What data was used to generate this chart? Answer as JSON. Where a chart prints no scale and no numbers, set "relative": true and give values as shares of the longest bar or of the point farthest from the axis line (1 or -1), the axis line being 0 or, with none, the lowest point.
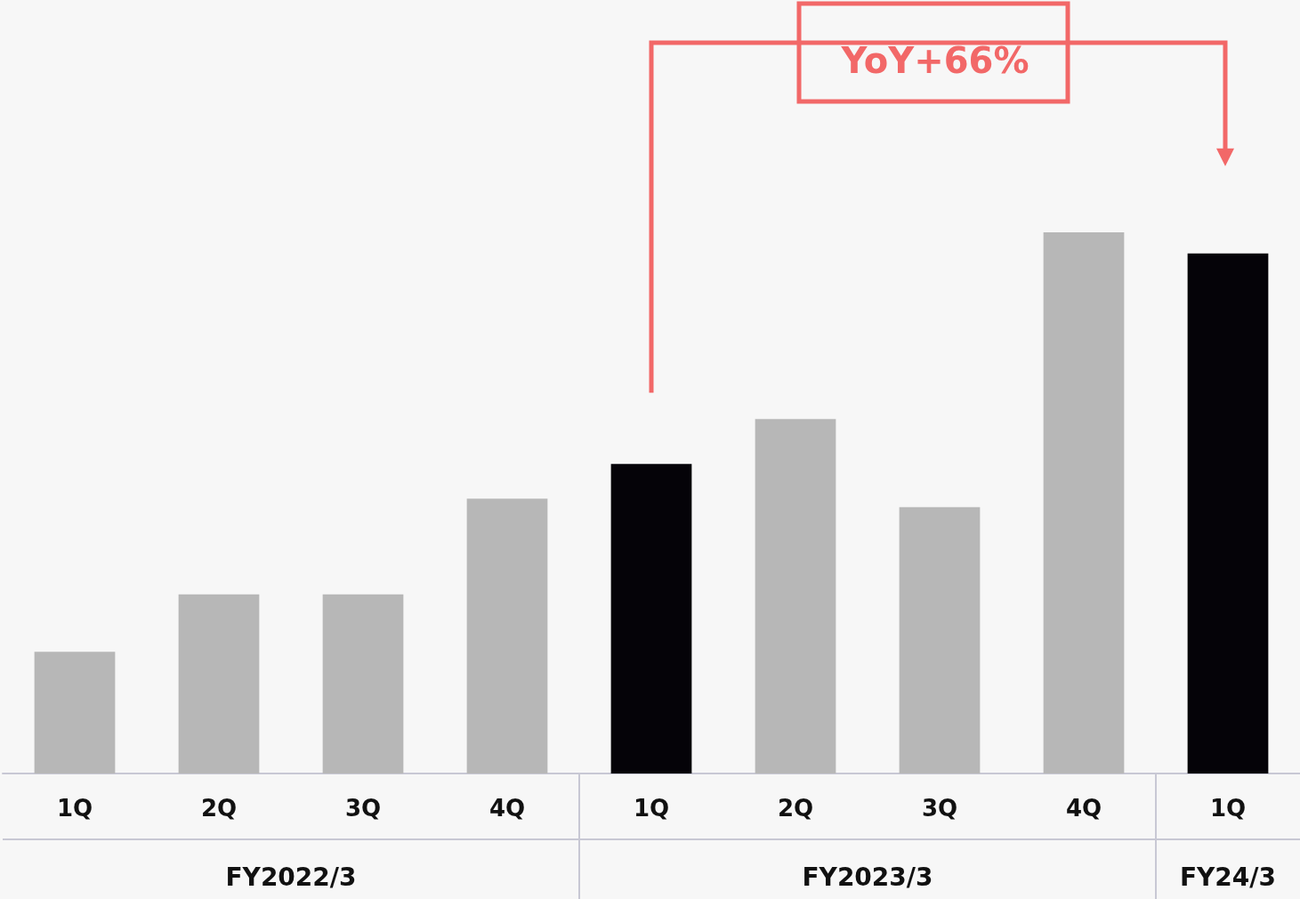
{
  "chart_data": {
    "type": "bar",
    "relative": true,
    "categories": [
      "1Q",
      "2Q",
      "3Q",
      "4Q",
      "1Q",
      "2Q",
      "3Q",
      "4Q",
      "1Q"
    ],
    "values": [
      0.225,
      0.331,
      0.331,
      0.508,
      0.572,
      0.655,
      0.492,
      1.0,
      0.961
    ],
    "colors": [
      "#b7b7b7",
      "#b7b7b7",
      "#b7b7b7",
      "#b7b7b7",
      "#050308",
      "#b7b7b7",
      "#b7b7b7",
      "#b7b7b7",
      "#050308"
    ],
    "annotations": [
      "YoY+66%",
      "FY2022/3",
      "FY2023/3",
      "FY24/3"
    ]
  }
}
